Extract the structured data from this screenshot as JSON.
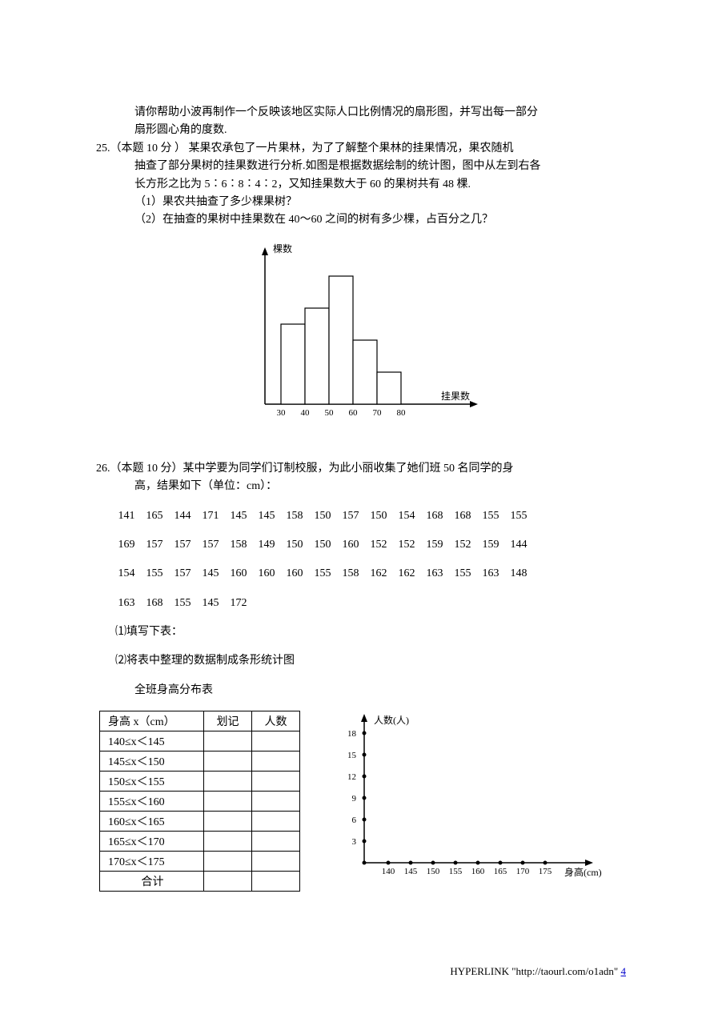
{
  "intro": {
    "line1": "请你帮助小波再制作一个反映该地区实际人口比例情况的扇形图，并写出每一部分",
    "line2": "扇形圆心角的度数."
  },
  "q25": {
    "num": "25.",
    "points": "（本题 10 分 ）",
    "body1": "  某果农承包了一片果林，为了了解整个果林的挂果情况，果农随机",
    "body2": "抽查了部分果树的挂果数进行分析.如图是根据数据绘制的统计图，图中从左到右各",
    "body3": "长方形之比为 5∶6∶8∶4∶2，又知挂果数大于 60 的果树共有 48 棵.",
    "sub1": "（1）果农共抽查了多少棵果树？",
    "sub2": "（2）在抽查的果树中挂果数在 40～60 之间的树有多少棵，占百分之几？",
    "chart": {
      "type": "bar",
      "ylabel": "棵数",
      "xlabel": "挂果数",
      "xticks": [
        "30",
        "40",
        "50",
        "60",
        "70",
        "80"
      ],
      "ratios": [
        5,
        6,
        8,
        4,
        2
      ],
      "bar_color": "#ffffff",
      "border_color": "#000000",
      "axis_color": "#000000"
    }
  },
  "q26": {
    "num": "26.",
    "points": "（本题 10 分）",
    "body1": "某中学要为同学们订制校服，为此小丽收集了她们班 50 名同学的身",
    "body2": "高，结果如下（单位：cm）：",
    "rows": [
      [
        "141",
        "165",
        "144",
        "171",
        "145",
        "145",
        "158",
        "150",
        "157",
        "150",
        "154",
        "168",
        "168",
        "155",
        "155"
      ],
      [
        "169",
        "157",
        "157",
        "157",
        "158",
        "149",
        "150",
        "150",
        "160",
        "152",
        "152",
        "159",
        "152",
        "159",
        "144"
      ],
      [
        "154",
        "155",
        "157",
        "145",
        "160",
        "160",
        "160",
        "155",
        "158",
        "162",
        "162",
        "163",
        "155",
        "163",
        "148"
      ],
      [
        "163",
        "168",
        "155",
        "145",
        "172"
      ]
    ],
    "sub1": "⑴填写下表：",
    "sub2": "⑵将表中整理的数据制成条形统计图",
    "table_title": "全班身高分布表",
    "table": {
      "headers": [
        "身高 x（cm）",
        "划记",
        "人数"
      ],
      "rows": [
        "140≤x＜145",
        "145≤x＜150",
        "150≤x＜155",
        "155≤x＜160",
        "160≤x＜165",
        "165≤x＜170",
        "170≤x＜175",
        "合计"
      ]
    },
    "chart": {
      "type": "axis",
      "ylabel": "人数(人)",
      "xlabel": "身高(cm)",
      "yticks": [
        "3",
        "6",
        "9",
        "12",
        "15",
        "18"
      ],
      "xticks": [
        "140",
        "145",
        "150",
        "155",
        "160",
        "165",
        "170",
        "175"
      ],
      "axis_color": "#000000",
      "dot_color": "#000000"
    }
  },
  "footer": {
    "text": "HYPERLINK \"http://taourl.com/o1adn\" ",
    "pagenum": "4"
  }
}
